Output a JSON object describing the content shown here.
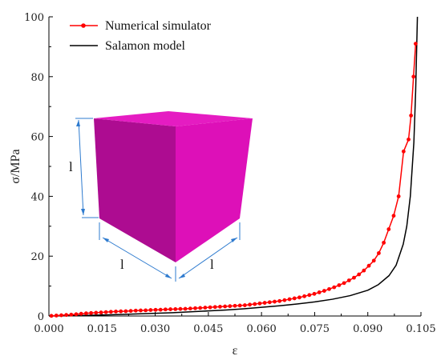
{
  "chart_data": {
    "type": "line",
    "xlabel": "ε",
    "ylabel": "σ/MPa",
    "xlim": [
      0,
      0.105
    ],
    "ylim": [
      0,
      100
    ],
    "x_ticks": [
      0,
      0.015,
      0.03,
      0.045,
      0.06,
      0.075,
      0.09,
      0.105
    ],
    "x_tick_labels": [
      "0.000",
      "0.015",
      "0.030",
      "0.045",
      "0.060",
      "0.075",
      "0.090",
      "0.105"
    ],
    "y_ticks": [
      0,
      20,
      40,
      60,
      80,
      100
    ],
    "y_tick_labels": [
      "0",
      "20",
      "40",
      "60",
      "80",
      "100"
    ],
    "grid": false,
    "legend_position": "top-left",
    "series": [
      {
        "name": "Numerical simulator",
        "color": "#ff0000",
        "marker": "circle",
        "x": [
          0.0007,
          0.0021,
          0.0035,
          0.0049,
          0.0063,
          0.0077,
          0.0091,
          0.0105,
          0.0119,
          0.0133,
          0.0147,
          0.0161,
          0.0175,
          0.0189,
          0.0203,
          0.0217,
          0.0231,
          0.0245,
          0.0259,
          0.0273,
          0.0287,
          0.0301,
          0.0315,
          0.0329,
          0.0343,
          0.0357,
          0.0371,
          0.0385,
          0.0399,
          0.0413,
          0.0427,
          0.0441,
          0.0455,
          0.0469,
          0.0483,
          0.0497,
          0.0511,
          0.0525,
          0.0539,
          0.0553,
          0.0567,
          0.0581,
          0.0595,
          0.0609,
          0.0623,
          0.0637,
          0.0651,
          0.0665,
          0.0679,
          0.0693,
          0.0707,
          0.0721,
          0.0735,
          0.0749,
          0.0763,
          0.0777,
          0.0791,
          0.0805,
          0.0819,
          0.0833,
          0.0847,
          0.0861,
          0.0875,
          0.0889,
          0.0903,
          0.0917,
          0.0931,
          0.0945,
          0.0959,
          0.0973,
          0.0987,
          0.1001,
          0.1015,
          0.1022,
          0.1029,
          0.1035
        ],
        "y": [
          0.05,
          0.15,
          0.25,
          0.35,
          0.45,
          0.6,
          0.75,
          0.9,
          1.0,
          1.1,
          1.2,
          1.3,
          1.4,
          1.5,
          1.55,
          1.6,
          1.7,
          1.8,
          1.85,
          1.9,
          2.0,
          2.05,
          2.1,
          2.2,
          2.25,
          2.3,
          2.35,
          2.4,
          2.5,
          2.6,
          2.7,
          2.8,
          2.9,
          3.0,
          3.1,
          3.2,
          3.3,
          3.4,
          3.5,
          3.6,
          3.8,
          4.0,
          4.2,
          4.4,
          4.6,
          4.8,
          5.0,
          5.3,
          5.6,
          5.9,
          6.2,
          6.6,
          7.0,
          7.4,
          7.9,
          8.4,
          9.0,
          9.6,
          10.3,
          11.0,
          11.9,
          12.8,
          13.9,
          15.2,
          16.8,
          18.5,
          21.0,
          24.5,
          29.0,
          33.5,
          40.0,
          55.0,
          59.0,
          67.0,
          80.0,
          91.0
        ]
      },
      {
        "name": "Salamon model",
        "color": "#000000",
        "marker": "none",
        "x": [
          0,
          0.005,
          0.01,
          0.015,
          0.02,
          0.025,
          0.03,
          0.035,
          0.04,
          0.045,
          0.05,
          0.055,
          0.06,
          0.065,
          0.07,
          0.075,
          0.08,
          0.085,
          0.09,
          0.093,
          0.096,
          0.098,
          0.1,
          0.101,
          0.102,
          0.103,
          0.1035,
          0.104
        ],
        "y": [
          0,
          0.1,
          0.2,
          0.35,
          0.5,
          0.7,
          0.9,
          1.1,
          1.4,
          1.7,
          2.0,
          2.4,
          2.9,
          3.4,
          4.0,
          4.7,
          5.6,
          6.8,
          8.6,
          10.5,
          13.5,
          17.0,
          24.0,
          30.0,
          40.0,
          58.0,
          75.0,
          100.0
        ]
      }
    ],
    "annotations": [
      {
        "text": "l",
        "element": "height-dimension"
      },
      {
        "text": "l",
        "element": "left-width-dimension"
      },
      {
        "text": "l",
        "element": "right-depth-dimension"
      }
    ],
    "inset_colors": {
      "cube_front": "#ad0c91",
      "cube_side": "#dd10b8",
      "cube_top": "#e51cc2",
      "dimension_lines": "#2e7bcf"
    }
  }
}
